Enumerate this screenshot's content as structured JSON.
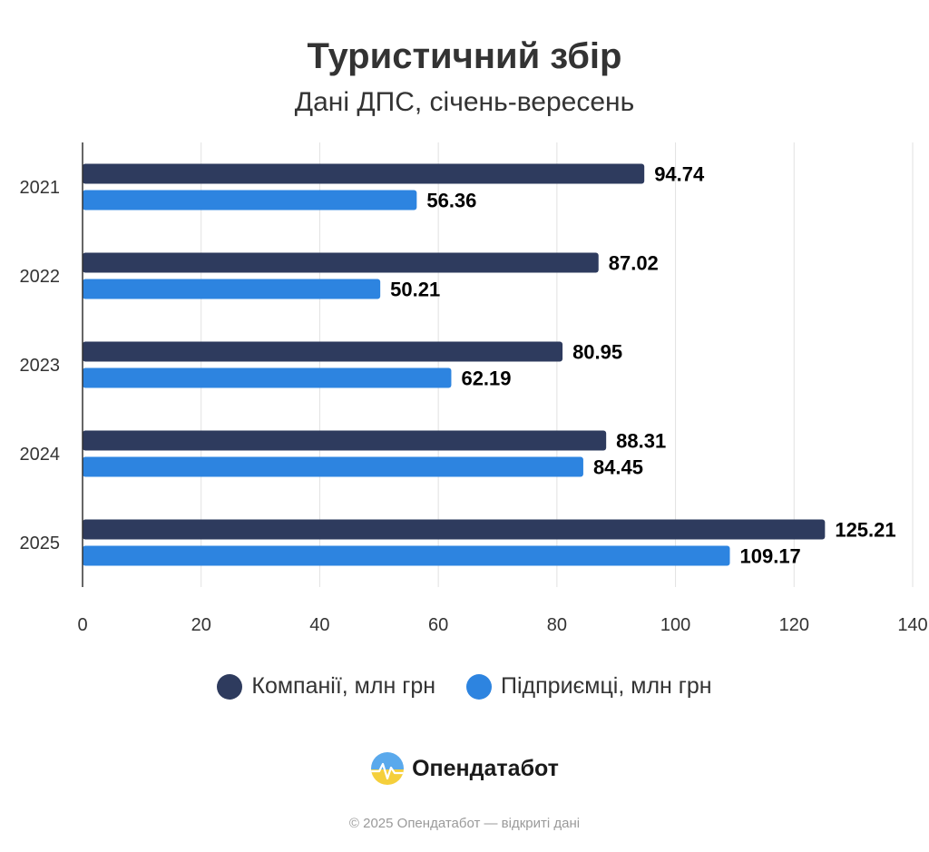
{
  "title": "Туристичний збір",
  "subtitle": "Дані ДПС, січень-вересень",
  "chart_data": {
    "type": "bar",
    "orientation": "horizontal",
    "categories": [
      "2021",
      "2022",
      "2023",
      "2024",
      "2025"
    ],
    "series": [
      {
        "name": "Компанії, млн грн",
        "color": "#2e3b5e",
        "values": [
          94.74,
          87.02,
          80.95,
          88.31,
          125.21
        ]
      },
      {
        "name": "Підприємці, млн грн",
        "color": "#2d84e0",
        "values": [
          56.36,
          50.21,
          62.19,
          84.45,
          109.17
        ]
      }
    ],
    "xlim": [
      0,
      140
    ],
    "xticks": [
      0,
      20,
      40,
      60,
      80,
      100,
      120,
      140
    ],
    "grid": true,
    "legend_position": "bottom"
  },
  "brand": {
    "name": "Опендатабот",
    "logo_icon": "opendatabot-logo-icon"
  },
  "copyright": "© 2025 Опендатабот — відкриті дані"
}
